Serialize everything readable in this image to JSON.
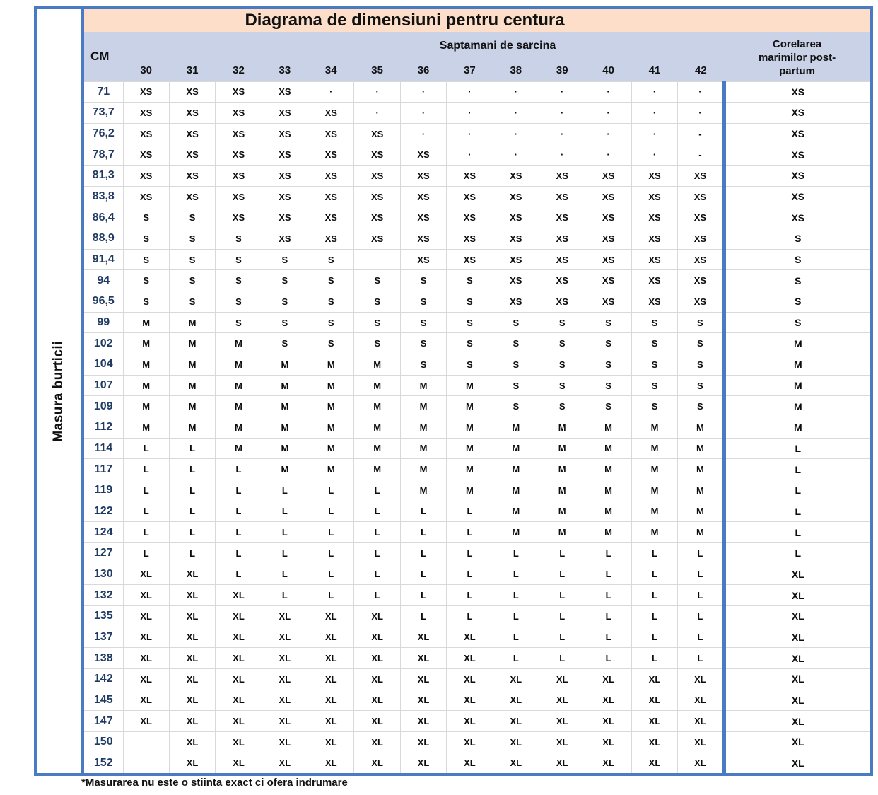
{
  "chart_data": {
    "type": "table",
    "title": "Diagrama de dimensiuni pentru centura",
    "row_axis_label": "Masura burticii",
    "row_header": "CM",
    "col_group_label": "Saptamani de sarcina",
    "postpartum_header_lines": [
      "Corelarea",
      "marimilor post-",
      "partum"
    ],
    "columns": [
      "30",
      "31",
      "32",
      "33",
      "34",
      "35",
      "36",
      "37",
      "38",
      "39",
      "40",
      "41",
      "42"
    ],
    "rows": [
      {
        "cm": "71",
        "sizes": [
          "XS",
          "XS",
          "XS",
          "XS",
          "·",
          "·",
          "·",
          "·",
          "·",
          "·",
          "·",
          "·",
          "·"
        ],
        "postpartum": "XS"
      },
      {
        "cm": "73,7",
        "sizes": [
          "XS",
          "XS",
          "XS",
          "XS",
          "XS",
          "·",
          "·",
          "·",
          "·",
          "·",
          "·",
          "·",
          "·"
        ],
        "postpartum": "XS"
      },
      {
        "cm": "76,2",
        "sizes": [
          "XS",
          "XS",
          "XS",
          "XS",
          "XS",
          "XS",
          "·",
          "·",
          "·",
          "·",
          "·",
          "·",
          "-"
        ],
        "postpartum": "XS"
      },
      {
        "cm": "78,7",
        "sizes": [
          "XS",
          "XS",
          "XS",
          "XS",
          "XS",
          "XS",
          "XS",
          "·",
          "·",
          "·",
          "·",
          "·",
          "-"
        ],
        "postpartum": "XS"
      },
      {
        "cm": "81,3",
        "sizes": [
          "XS",
          "XS",
          "XS",
          "XS",
          "XS",
          "XS",
          "XS",
          "XS",
          "XS",
          "XS",
          "XS",
          "XS",
          "XS"
        ],
        "postpartum": "XS"
      },
      {
        "cm": "83,8",
        "sizes": [
          "XS",
          "XS",
          "XS",
          "XS",
          "XS",
          "XS",
          "XS",
          "XS",
          "XS",
          "XS",
          "XS",
          "XS",
          "XS"
        ],
        "postpartum": "XS"
      },
      {
        "cm": "86,4",
        "sizes": [
          "S",
          "S",
          "XS",
          "XS",
          "XS",
          "XS",
          "XS",
          "XS",
          "XS",
          "XS",
          "XS",
          "XS",
          "XS"
        ],
        "postpartum": "XS"
      },
      {
        "cm": "88,9",
        "sizes": [
          "S",
          "S",
          "S",
          "XS",
          "XS",
          "XS",
          "XS",
          "XS",
          "XS",
          "XS",
          "XS",
          "XS",
          "XS"
        ],
        "postpartum": "S"
      },
      {
        "cm": "91,4",
        "sizes": [
          "S",
          "S",
          "S",
          "S",
          "S",
          "",
          "XS",
          "XS",
          "XS",
          "XS",
          "XS",
          "XS",
          "XS"
        ],
        "postpartum": "S"
      },
      {
        "cm": "94",
        "sizes": [
          "S",
          "S",
          "S",
          "S",
          "S",
          "S",
          "S",
          "S",
          "XS",
          "XS",
          "XS",
          "XS",
          "XS"
        ],
        "postpartum": "S"
      },
      {
        "cm": "96,5",
        "sizes": [
          "S",
          "S",
          "S",
          "S",
          "S",
          "S",
          "S",
          "S",
          "XS",
          "XS",
          "XS",
          "XS",
          "XS"
        ],
        "postpartum": "S"
      },
      {
        "cm": "99",
        "sizes": [
          "M",
          "M",
          "S",
          "S",
          "S",
          "S",
          "S",
          "S",
          "S",
          "S",
          "S",
          "S",
          "S"
        ],
        "postpartum": "S"
      },
      {
        "cm": "102",
        "sizes": [
          "M",
          "M",
          "M",
          "S",
          "S",
          "S",
          "S",
          "S",
          "S",
          "S",
          "S",
          "S",
          "S"
        ],
        "postpartum": "M"
      },
      {
        "cm": "104",
        "sizes": [
          "M",
          "M",
          "M",
          "M",
          "M",
          "M",
          "S",
          "S",
          "S",
          "S",
          "S",
          "S",
          "S"
        ],
        "postpartum": "M"
      },
      {
        "cm": "107",
        "sizes": [
          "M",
          "M",
          "M",
          "M",
          "M",
          "M",
          "M",
          "M",
          "S",
          "S",
          "S",
          "S",
          "S"
        ],
        "postpartum": "M"
      },
      {
        "cm": "109",
        "sizes": [
          "M",
          "M",
          "M",
          "M",
          "M",
          "M",
          "M",
          "M",
          "S",
          "S",
          "S",
          "S",
          "S"
        ],
        "postpartum": "M"
      },
      {
        "cm": "112",
        "sizes": [
          "M",
          "M",
          "M",
          "M",
          "M",
          "M",
          "M",
          "M",
          "M",
          "M",
          "M",
          "M",
          "M"
        ],
        "postpartum": "M"
      },
      {
        "cm": "114",
        "sizes": [
          "L",
          "L",
          "M",
          "M",
          "M",
          "M",
          "M",
          "M",
          "M",
          "M",
          "M",
          "M",
          "M"
        ],
        "postpartum": "L"
      },
      {
        "cm": "117",
        "sizes": [
          "L",
          "L",
          "L",
          "M",
          "M",
          "M",
          "M",
          "M",
          "M",
          "M",
          "M",
          "M",
          "M"
        ],
        "postpartum": "L"
      },
      {
        "cm": "119",
        "sizes": [
          "L",
          "L",
          "L",
          "L",
          "L",
          "L",
          "M",
          "M",
          "M",
          "M",
          "M",
          "M",
          "M"
        ],
        "postpartum": "L"
      },
      {
        "cm": "122",
        "sizes": [
          "L",
          "L",
          "L",
          "L",
          "L",
          "L",
          "L",
          "L",
          "M",
          "M",
          "M",
          "M",
          "M"
        ],
        "postpartum": "L"
      },
      {
        "cm": "124",
        "sizes": [
          "L",
          "L",
          "L",
          "L",
          "L",
          "L",
          "L",
          "L",
          "M",
          "M",
          "M",
          "M",
          "M"
        ],
        "postpartum": "L"
      },
      {
        "cm": "127",
        "sizes": [
          "L",
          "L",
          "L",
          "L",
          "L",
          "L",
          "L",
          "L",
          "L",
          "L",
          "L",
          "L",
          "L"
        ],
        "postpartum": "L"
      },
      {
        "cm": "130",
        "sizes": [
          "XL",
          "XL",
          "L",
          "L",
          "L",
          "L",
          "L",
          "L",
          "L",
          "L",
          "L",
          "L",
          "L"
        ],
        "postpartum": "XL"
      },
      {
        "cm": "132",
        "sizes": [
          "XL",
          "XL",
          "XL",
          "L",
          "L",
          "L",
          "L",
          "L",
          "L",
          "L",
          "L",
          "L",
          "L"
        ],
        "postpartum": "XL"
      },
      {
        "cm": "135",
        "sizes": [
          "XL",
          "XL",
          "XL",
          "XL",
          "XL",
          "XL",
          "L",
          "L",
          "L",
          "L",
          "L",
          "L",
          "L"
        ],
        "postpartum": "XL"
      },
      {
        "cm": "137",
        "sizes": [
          "XL",
          "XL",
          "XL",
          "XL",
          "XL",
          "XL",
          "XL",
          "XL",
          "L",
          "L",
          "L",
          "L",
          "L"
        ],
        "postpartum": "XL"
      },
      {
        "cm": "138",
        "sizes": [
          "XL",
          "XL",
          "XL",
          "XL",
          "XL",
          "XL",
          "XL",
          "XL",
          "L",
          "L",
          "L",
          "L",
          "L"
        ],
        "postpartum": "XL"
      },
      {
        "cm": "142",
        "sizes": [
          "XL",
          "XL",
          "XL",
          "XL",
          "XL",
          "XL",
          "XL",
          "XL",
          "XL",
          "XL",
          "XL",
          "XL",
          "XL"
        ],
        "postpartum": "XL"
      },
      {
        "cm": "145",
        "sizes": [
          "XL",
          "XL",
          "XL",
          "XL",
          "XL",
          "XL",
          "XL",
          "XL",
          "XL",
          "XL",
          "XL",
          "XL",
          "XL"
        ],
        "postpartum": "XL"
      },
      {
        "cm": "147",
        "sizes": [
          "XL",
          "XL",
          "XL",
          "XL",
          "XL",
          "XL",
          "XL",
          "XL",
          "XL",
          "XL",
          "XL",
          "XL",
          "XL"
        ],
        "postpartum": "XL"
      },
      {
        "cm": "150",
        "sizes": [
          "",
          "XL",
          "XL",
          "XL",
          "XL",
          "XL",
          "XL",
          "XL",
          "XL",
          "XL",
          "XL",
          "XL",
          "XL"
        ],
        "postpartum": "XL"
      },
      {
        "cm": "152",
        "sizes": [
          "",
          "XL",
          "XL",
          "XL",
          "XL",
          "XL",
          "XL",
          "XL",
          "XL",
          "XL",
          "XL",
          "XL",
          "XL"
        ],
        "postpartum": "XL"
      }
    ],
    "footnote": "*Masurarea nu este o stiinta exact ci ofera indrumare"
  },
  "colors": {
    "title_bg": "#fcdec9",
    "header_bg": "#cad2e8",
    "border_blue": "#4a7ac1",
    "grid_line": "#d9d9d9",
    "cm_text": "#1f3a63",
    "cell_text": "#0d0d0d"
  }
}
